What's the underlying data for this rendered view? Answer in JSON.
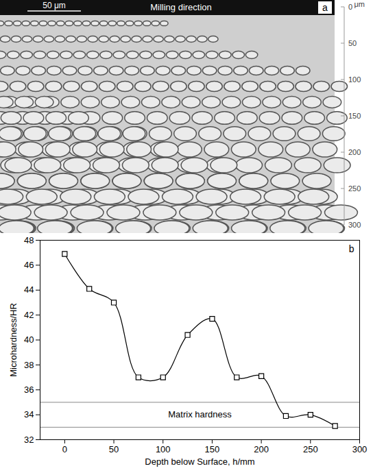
{
  "micrograph": {
    "panel": "a",
    "title": "Milling direction",
    "scale_bar": "50 μm",
    "ruler_unit": "μm",
    "ruler_ticks": [
      0,
      50,
      100,
      150,
      200,
      250,
      300
    ]
  },
  "chart_data": {
    "type": "line",
    "panel": "b",
    "x_label": "Depth below Surface, h/mm",
    "y_label": "Microhardness/HR",
    "x": [
      0,
      25,
      50,
      75,
      100,
      125,
      150,
      175,
      200,
      225,
      250,
      275
    ],
    "values": [
      46.9,
      44.1,
      43.0,
      37.0,
      37.0,
      40.4,
      41.7,
      37.0,
      37.1,
      33.9,
      34.0,
      33.1
    ],
    "color": "#000000",
    "marker": "square",
    "line_style": "smooth",
    "xlim": [
      -25,
      300
    ],
    "xticks": [
      0,
      50,
      100,
      150,
      200,
      250,
      300
    ],
    "ylim": [
      32,
      48
    ],
    "yticks": [
      32,
      34,
      36,
      38,
      40,
      42,
      44,
      46,
      48
    ],
    "reference_lines": [
      33,
      35
    ],
    "annotations": [
      {
        "text": "Matrix hardness"
      }
    ],
    "grid": false
  }
}
